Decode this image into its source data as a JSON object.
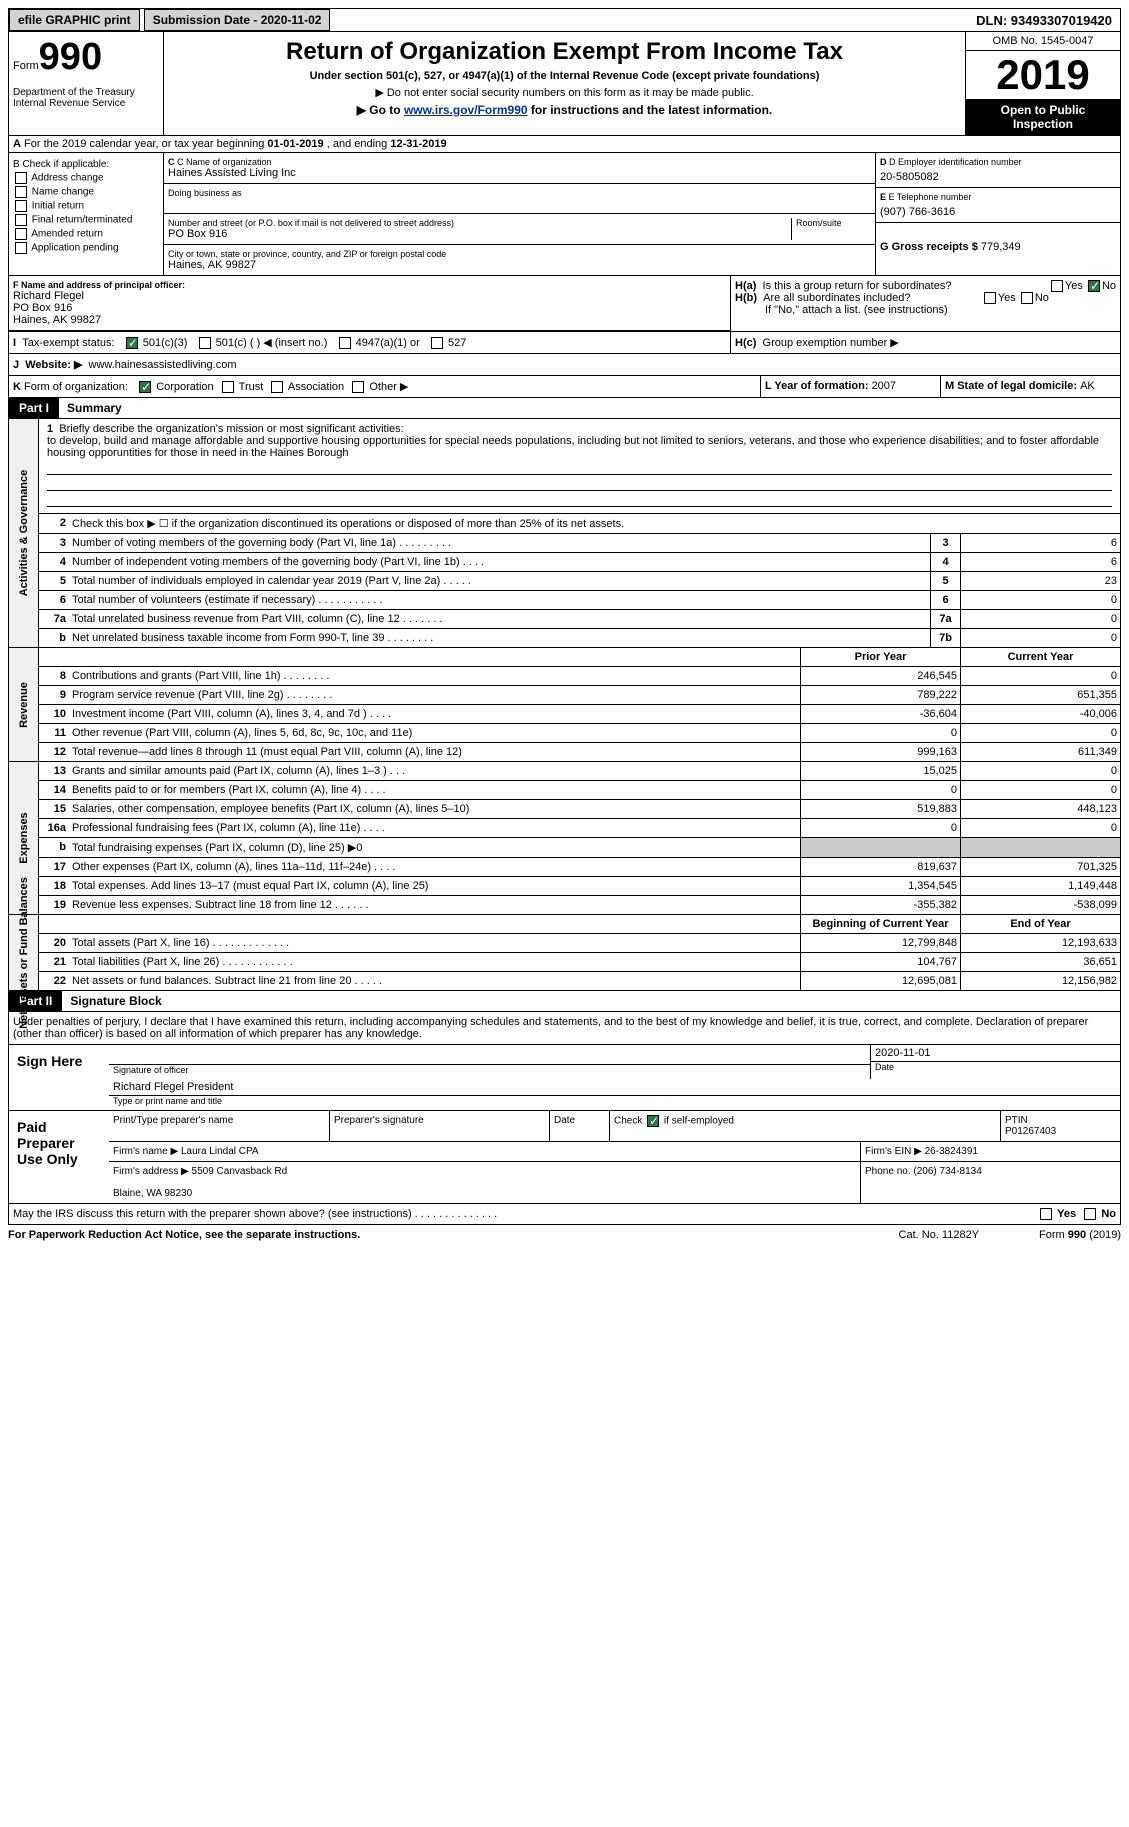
{
  "topbar": {
    "efile": "efile GRAPHIC print",
    "submission": "Submission Date - 2020-11-02",
    "dln": "DLN: 93493307019420"
  },
  "header": {
    "form_label": "Form",
    "form_num": "990",
    "dept": "Department of the Treasury\nInternal Revenue Service",
    "title": "Return of Organization Exempt From Income Tax",
    "sub": "Under section 501(c), 527, or 4947(a)(1) of the Internal Revenue Code (except private foundations)",
    "note1": "▶ Do not enter social security numbers on this form as it may be made public.",
    "note2_pre": "▶ Go to ",
    "note2_link": "www.irs.gov/Form990",
    "note2_post": " for instructions and the latest information.",
    "omb": "OMB No. 1545-0047",
    "year": "2019",
    "open": "Open to Public Inspection"
  },
  "row_a": {
    "label": "A",
    "text_pre": "For the 2019 calendar year, or tax year beginning ",
    "begin": "01-01-2019",
    "text_mid": " , and ending ",
    "end": "12-31-2019"
  },
  "col_b": {
    "label": "B Check if applicable:",
    "items": [
      "Address change",
      "Name change",
      "Initial return",
      "Final return/terminated",
      "Amended return",
      "Application pending"
    ]
  },
  "org": {
    "c_label": "C Name of organization",
    "name": "Haines Assisted Living Inc",
    "dba_label": "Doing business as",
    "addr_label": "Number and street (or P.O. box if mail is not delivered to street address)",
    "room_label": "Room/suite",
    "addr": "PO Box 916",
    "city_label": "City or town, state or province, country, and ZIP or foreign postal code",
    "city": "Haines, AK  99827"
  },
  "col_d": {
    "d_label": "D Employer identification number",
    "ein": "20-5805082",
    "e_label": "E Telephone number",
    "phone": "(907) 766-3616",
    "g_label": "G Gross receipts $ ",
    "gross": "779,349"
  },
  "officer": {
    "f_label": "F  Name and address of principal officer:",
    "name": "Richard Flegel",
    "addr": "PO Box 916",
    "city": "Haines, AK  99827"
  },
  "h": {
    "ha_label": "H(a)",
    "ha_text": "Is this a group return for subordinates?",
    "hb_label": "H(b)",
    "hb_text": "Are all subordinates included?",
    "hb_note": "If \"No,\" attach a list. (see instructions)",
    "hc_label": "H(c)",
    "hc_text": "Group exemption number ▶",
    "yes": "Yes",
    "no": "No"
  },
  "row_i": {
    "label": "I",
    "text": "Tax-exempt status:",
    "opts": [
      "501(c)(3)",
      "501(c) (  ) ◀ (insert no.)",
      "4947(a)(1) or",
      "527"
    ]
  },
  "row_j": {
    "label": "J",
    "text": "Website: ▶",
    "val": "www.hainesassistedliving.com"
  },
  "row_k": {
    "label": "K",
    "text": "Form of organization:",
    "opts": [
      "Corporation",
      "Trust",
      "Association",
      "Other ▶"
    ],
    "l_label": "L Year of formation: ",
    "l_val": "2007",
    "m_label": "M State of legal domicile: ",
    "m_val": "AK"
  },
  "parts": {
    "p1_tab": "Part I",
    "p1_title": "Summary",
    "p2_tab": "Part II",
    "p2_title": "Signature Block"
  },
  "vtabs": {
    "gov": "Activities & Governance",
    "rev": "Revenue",
    "exp": "Expenses",
    "net": "Net Assets or Fund Balances"
  },
  "mission": {
    "num": "1",
    "label": "Briefly describe the organization's mission or most significant activities:",
    "text": "to develop, build and manage affordable and supportive housing opportunities for special needs populations, including but not limited to seniors, veterans, and those who experience disabilities; and to foster affordable housing opporuntities for those in need in the Haines Borough"
  },
  "gov_rows": [
    {
      "n": "2",
      "d": "Check this box ▶ ☐  if the organization discontinued its operations or disposed of more than 25% of its net assets.",
      "c": "",
      "v": ""
    },
    {
      "n": "3",
      "d": "Number of voting members of the governing body (Part VI, line 1a)  .  .  .  .  .  .  .  .  .",
      "c": "3",
      "v": "6"
    },
    {
      "n": "4",
      "d": "Number of independent voting members of the governing body (Part VI, line 1b)  .  .  .  .",
      "c": "4",
      "v": "6"
    },
    {
      "n": "5",
      "d": "Total number of individuals employed in calendar year 2019 (Part V, line 2a)  .  .  .  .  .",
      "c": "5",
      "v": "23"
    },
    {
      "n": "6",
      "d": "Total number of volunteers (estimate if necessary)  .  .  .  .  .  .  .  .  .  .  .",
      "c": "6",
      "v": "0"
    },
    {
      "n": "7a",
      "d": "Total unrelated business revenue from Part VIII, column (C), line 12  .  .  .  .  .  .  .",
      "c": "7a",
      "v": "0"
    },
    {
      "n": "b",
      "d": "Net unrelated business taxable income from Form 990-T, line 39  .  .  .  .  .  .  .  .",
      "c": "7b",
      "v": "0"
    }
  ],
  "fin_hdr": {
    "prior": "Prior Year",
    "current": "Current Year"
  },
  "rev_rows": [
    {
      "n": "8",
      "d": "Contributions and grants (Part VIII, line 1h)  .  .  .  .  .  .  .  .",
      "p": "246,545",
      "c": "0"
    },
    {
      "n": "9",
      "d": "Program service revenue (Part VIII, line 2g)  .  .  .  .  .  .  .  .",
      "p": "789,222",
      "c": "651,355"
    },
    {
      "n": "10",
      "d": "Investment income (Part VIII, column (A), lines 3, 4, and 7d )  .  .  .  .",
      "p": "-36,604",
      "c": "-40,006"
    },
    {
      "n": "11",
      "d": "Other revenue (Part VIII, column (A), lines 5, 6d, 8c, 9c, 10c, and 11e)",
      "p": "0",
      "c": "0"
    },
    {
      "n": "12",
      "d": "Total revenue—add lines 8 through 11 (must equal Part VIII, column (A), line 12)",
      "p": "999,163",
      "c": "611,349"
    }
  ],
  "exp_rows": [
    {
      "n": "13",
      "d": "Grants and similar amounts paid (Part IX, column (A), lines 1–3 )  .  .  .",
      "p": "15,025",
      "c": "0"
    },
    {
      "n": "14",
      "d": "Benefits paid to or for members (Part IX, column (A), line 4)  .  .  .  .",
      "p": "0",
      "c": "0"
    },
    {
      "n": "15",
      "d": "Salaries, other compensation, employee benefits (Part IX, column (A), lines 5–10)",
      "p": "519,883",
      "c": "448,123"
    },
    {
      "n": "16a",
      "d": "Professional fundraising fees (Part IX, column (A), line 11e)  .  .  .  .",
      "p": "0",
      "c": "0"
    },
    {
      "n": "b",
      "d": "Total fundraising expenses (Part IX, column (D), line 25) ▶0",
      "p": "",
      "c": "",
      "grey": true
    },
    {
      "n": "17",
      "d": "Other expenses (Part IX, column (A), lines 11a–11d, 11f–24e)  .  .  .  .",
      "p": "819,637",
      "c": "701,325"
    },
    {
      "n": "18",
      "d": "Total expenses. Add lines 13–17 (must equal Part IX, column (A), line 25)",
      "p": "1,354,545",
      "c": "1,149,448"
    },
    {
      "n": "19",
      "d": "Revenue less expenses. Subtract line 18 from line 12  .  .  .  .  .  .",
      "p": "-355,382",
      "c": "-538,099"
    }
  ],
  "net_hdr": {
    "begin": "Beginning of Current Year",
    "end": "End of Year"
  },
  "net_rows": [
    {
      "n": "20",
      "d": "Total assets (Part X, line 16)  .  .  .  .  .  .  .  .  .  .  .  .  .",
      "p": "12,799,848",
      "c": "12,193,633"
    },
    {
      "n": "21",
      "d": "Total liabilities (Part X, line 26)  .  .  .  .  .  .  .  .  .  .  .  .",
      "p": "104,767",
      "c": "36,651"
    },
    {
      "n": "22",
      "d": "Net assets or fund balances. Subtract line 21 from line 20  .  .  .  .  .",
      "p": "12,695,081",
      "c": "12,156,982"
    }
  ],
  "sig": {
    "perjury": "Under penalties of perjury, I declare that I have examined this return, including accompanying schedules and statements, and to the best of my knowledge and belief, it is true, correct, and complete. Declaration of preparer (other than officer) is based on all information of which preparer has any knowledge.",
    "sign_here": "Sign Here",
    "sig_officer": "Signature of officer",
    "date": "Date",
    "date_val": "2020-11-01",
    "name": "Richard Flegel  President",
    "name_label": "Type or print name and title",
    "paid": "Paid Preparer Use Only",
    "prep_name_label": "Print/Type preparer's name",
    "prep_sig_label": "Preparer's signature",
    "prep_date_label": "Date",
    "check_label": "Check",
    "self_emp": "if self-employed",
    "ptin_label": "PTIN",
    "ptin": "P01267403",
    "firm_name_label": "Firm's name   ▶",
    "firm_name": "Laura Lindal CPA",
    "firm_ein_label": "Firm's EIN ▶",
    "firm_ein": "26-3824391",
    "firm_addr_label": "Firm's address ▶",
    "firm_addr": "5509 Canvasback Rd",
    "firm_city": "Blaine, WA  98230",
    "phone_label": "Phone no.",
    "phone": "(206) 734-8134"
  },
  "footer": {
    "discuss": "May the IRS discuss this return with the preparer shown above? (see instructions)  .  .  .  .  .  .  .  .  .  .  .  .  .  .",
    "yes": "Yes",
    "no": "No",
    "paperwork": "For Paperwork Reduction Act Notice, see the separate instructions.",
    "cat": "Cat. No. 11282Y",
    "form": "Form 990 (2019)"
  }
}
